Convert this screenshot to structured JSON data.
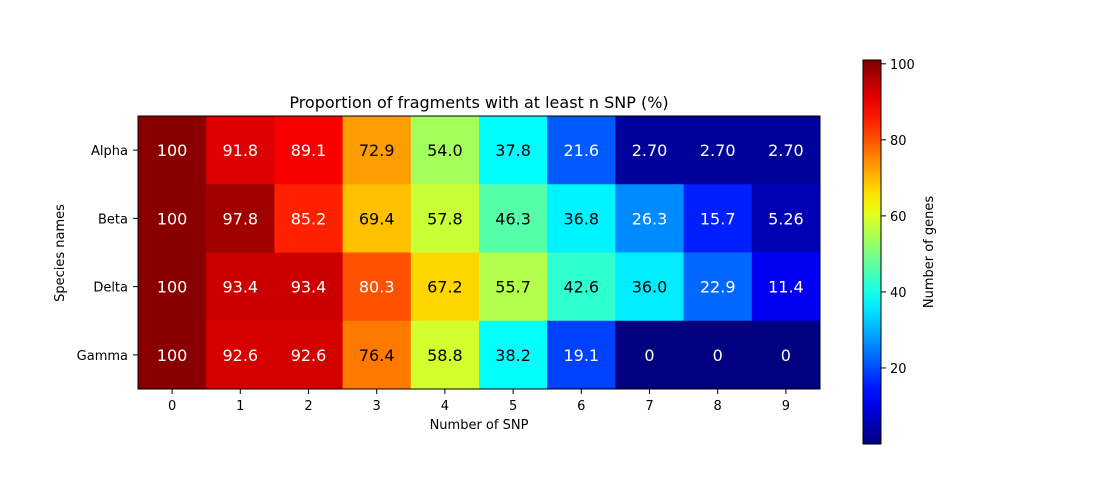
{
  "chart_data": {
    "type": "heatmap",
    "title": "Proportion of fragments with at least n SNP (%)",
    "xlabel": "Number of SNP",
    "ylabel": "Species names",
    "x_categories": [
      "0",
      "1",
      "2",
      "3",
      "4",
      "5",
      "6",
      "7",
      "8",
      "9"
    ],
    "y_categories": [
      "Alpha",
      "Beta",
      "Delta",
      "Gamma"
    ],
    "values": [
      [
        100,
        91.8,
        89.1,
        72.9,
        54.0,
        37.8,
        21.6,
        2.7,
        2.7,
        2.7
      ],
      [
        100,
        97.8,
        85.2,
        69.4,
        57.8,
        46.3,
        36.8,
        26.3,
        15.7,
        5.26
      ],
      [
        100,
        93.4,
        93.4,
        80.3,
        67.2,
        55.7,
        42.6,
        36.0,
        22.9,
        11.4
      ],
      [
        100,
        92.6,
        92.6,
        76.4,
        58.8,
        38.2,
        19.1,
        0,
        0,
        0
      ]
    ],
    "cell_labels": [
      [
        "100",
        "91.8",
        "89.1",
        "72.9",
        "54.0",
        "37.8",
        "21.6",
        "2.70",
        "2.70",
        "2.70"
      ],
      [
        "100",
        "97.8",
        "85.2",
        "69.4",
        "57.8",
        "46.3",
        "36.8",
        "26.3",
        "15.7",
        "5.26"
      ],
      [
        "100",
        "93.4",
        "93.4",
        "80.3",
        "67.2",
        "55.7",
        "42.6",
        "36.0",
        "22.9",
        "11.4"
      ],
      [
        "100",
        "92.6",
        "92.6",
        "76.4",
        "58.8",
        "38.2",
        "19.1",
        "0",
        "0",
        "0"
      ]
    ],
    "colormap": "jet",
    "colorbar": {
      "label": "Number of genes",
      "range": [
        0,
        101
      ],
      "ticks": [
        20,
        40,
        60,
        80,
        100
      ],
      "tick_labels": [
        "20",
        "40",
        "60",
        "80",
        "100"
      ]
    },
    "grid": false
  }
}
